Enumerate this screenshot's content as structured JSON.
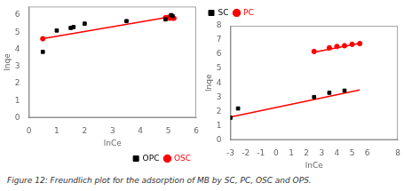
{
  "caption": "Figure 12: Freundlich plot for the adsorption of MB by SC, PC, OSC and OPS.",
  "chart_data": [
    {
      "type": "scatter",
      "x_label": "lnCe",
      "y_label": "lnqe",
      "xlim": [
        0,
        6
      ],
      "ylim": [
        0,
        6.5
      ],
      "xticks": [
        0,
        1,
        2,
        3,
        4,
        5,
        6
      ],
      "yticks": [
        0,
        1,
        2,
        3,
        4,
        5,
        6
      ],
      "grid": false,
      "legend": "lower right",
      "series": [
        {
          "name": "OPC",
          "color": "#000000",
          "marker": "square",
          "x": [
            0.5,
            1.0,
            1.5,
            1.6,
            2.0,
            3.5,
            4.9,
            5.1,
            5.15
          ],
          "values": [
            3.85,
            5.1,
            5.25,
            5.3,
            5.5,
            5.65,
            5.75,
            6.0,
            5.95
          ]
        },
        {
          "name": "OSC",
          "color": "#ff0000",
          "marker": "circle",
          "x": [
            0.5,
            4.9,
            5.0,
            5.05,
            5.1,
            5.15,
            5.2
          ],
          "values": [
            4.62,
            5.85,
            5.87,
            5.82,
            5.88,
            5.82,
            5.82
          ]
        },
        {
          "type": "line",
          "color": "#ff0000",
          "line_style": "solid",
          "x": [
            0.5,
            5.2
          ],
          "values": [
            4.62,
            5.93
          ]
        }
      ]
    },
    {
      "type": "scatter",
      "x_label": "lnCe",
      "y_label": "lnqe",
      "xlim": [
        -3,
        8
      ],
      "ylim": [
        0,
        8
      ],
      "xticks": [
        -3,
        -2,
        -1,
        0,
        1,
        2,
        3,
        4,
        5,
        6,
        8
      ],
      "yticks": [
        0,
        1,
        2,
        3,
        4,
        5,
        6,
        7,
        8
      ],
      "grid": false,
      "legend": "upper left",
      "series": [
        {
          "name": "SC",
          "color": "#000000",
          "marker": "square",
          "x": [
            -3.0,
            -2.5,
            2.5,
            3.5,
            4.5
          ],
          "values": [
            1.55,
            2.2,
            3.0,
            3.3,
            3.45
          ]
        },
        {
          "name": "PC",
          "color": "#ff0000",
          "marker": "circle",
          "x": [
            2.5,
            3.5,
            4.0,
            4.5,
            5.0,
            5.5
          ],
          "values": [
            6.2,
            6.45,
            6.55,
            6.6,
            6.7,
            6.75
          ]
        },
        {
          "type": "line",
          "color": "#ff0000",
          "line_style": "solid",
          "x": [
            -3.0,
            5.5
          ],
          "values": [
            1.6,
            3.5
          ]
        },
        {
          "type": "line",
          "color": "#ff0000",
          "line_style": "solid",
          "x": [
            2.5,
            5.5
          ],
          "values": [
            6.15,
            6.77
          ]
        }
      ]
    }
  ]
}
